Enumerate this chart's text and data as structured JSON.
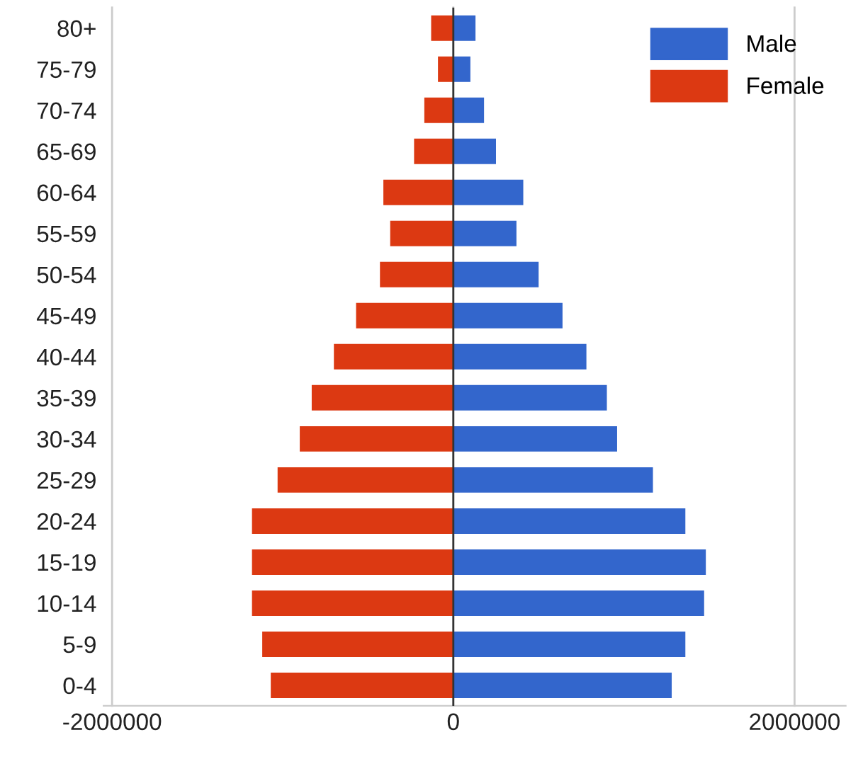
{
  "chart_data": {
    "type": "bar",
    "orientation": "horizontal",
    "stacked": true,
    "categories": [
      "80+",
      "75-79",
      "70-74",
      "65-69",
      "60-64",
      "55-59",
      "50-54",
      "45-49",
      "40-44",
      "35-39",
      "30-34",
      "25-29",
      "20-24",
      "15-19",
      "10-14",
      "5-9",
      "0-4"
    ],
    "series": [
      {
        "name": "Male",
        "color": "#3366cc",
        "values": [
          130000,
          100000,
          180000,
          250000,
          410000,
          370000,
          500000,
          640000,
          780000,
          900000,
          960000,
          1170000,
          1360000,
          1480000,
          1470000,
          1360000,
          1280000
        ]
      },
      {
        "name": "Female",
        "color": "#dc3912",
        "values": [
          -130000,
          -90000,
          -170000,
          -230000,
          -410000,
          -370000,
          -430000,
          -570000,
          -700000,
          -830000,
          -900000,
          -1030000,
          -1180000,
          -1180000,
          -1180000,
          -1120000,
          -1070000
        ]
      }
    ],
    "xlim": [
      -2050000,
      2300000
    ],
    "xticks": [
      -2000000,
      0,
      2000000
    ],
    "grid": "x",
    "legend": "top right"
  }
}
